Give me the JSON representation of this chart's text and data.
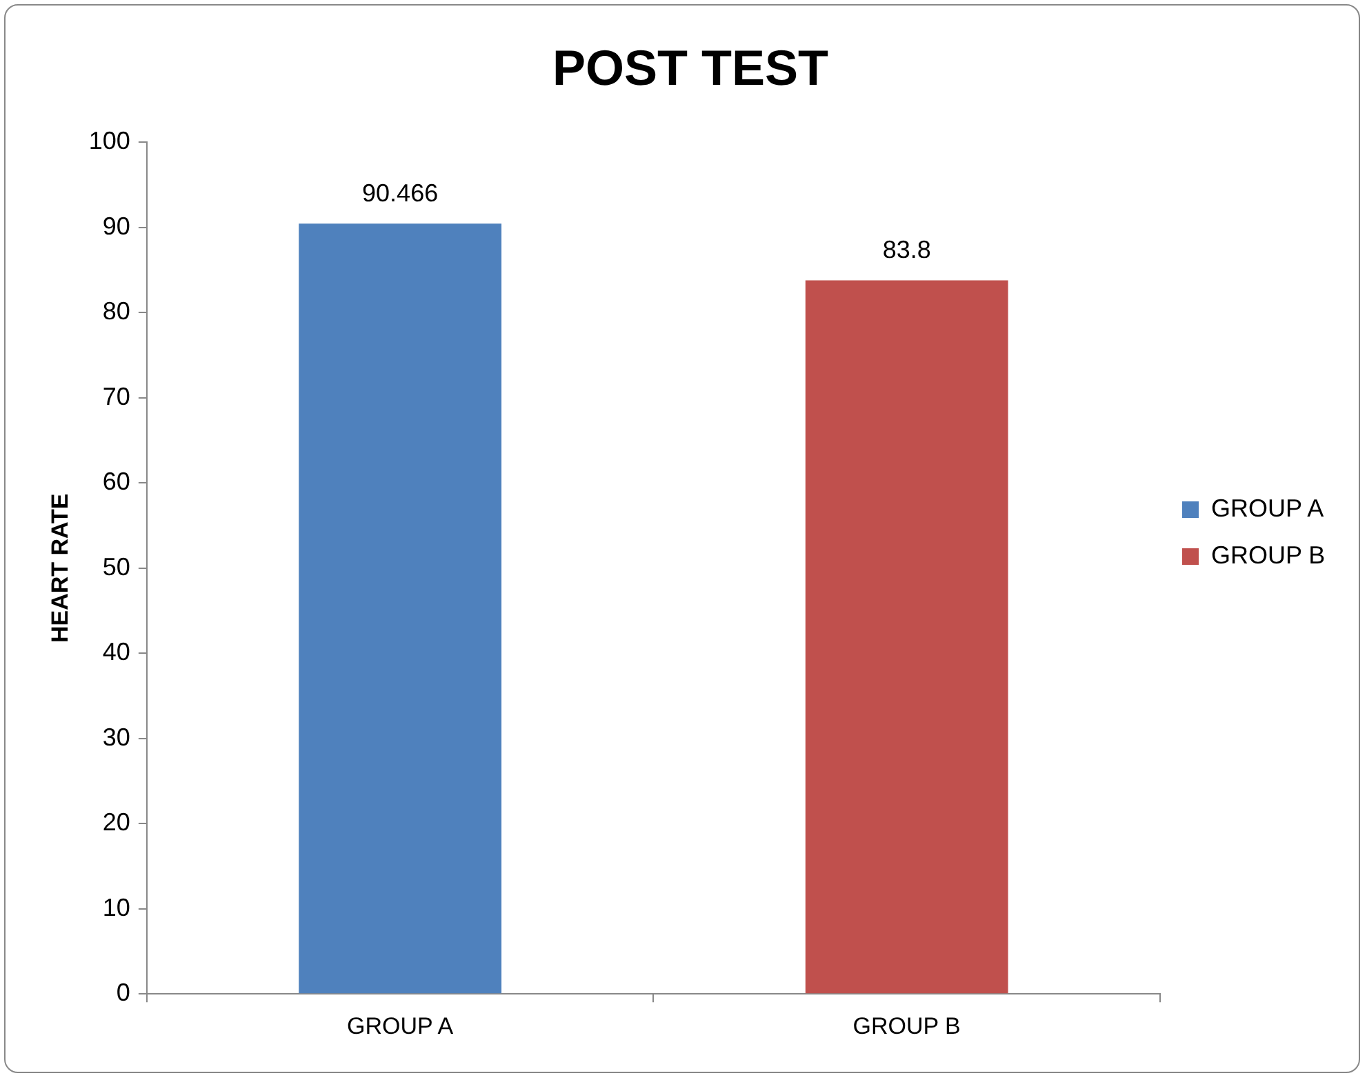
{
  "chart_data": {
    "type": "bar",
    "title": "POST TEST",
    "ylabel": "HEART RATE",
    "categories": [
      "GROUP A",
      "GROUP B"
    ],
    "series": [
      {
        "name": "GROUP A",
        "color": "#4f81bd",
        "values": [
          90.466,
          null
        ]
      },
      {
        "name": "GROUP B",
        "color": "#c0504d",
        "values": [
          null,
          83.8
        ]
      }
    ],
    "ylim": [
      0,
      100
    ],
    "yticks": [
      0,
      10,
      20,
      30,
      40,
      50,
      60,
      70,
      80,
      90,
      100
    ],
    "grid": false,
    "legend": "right",
    "data_labels": true
  }
}
